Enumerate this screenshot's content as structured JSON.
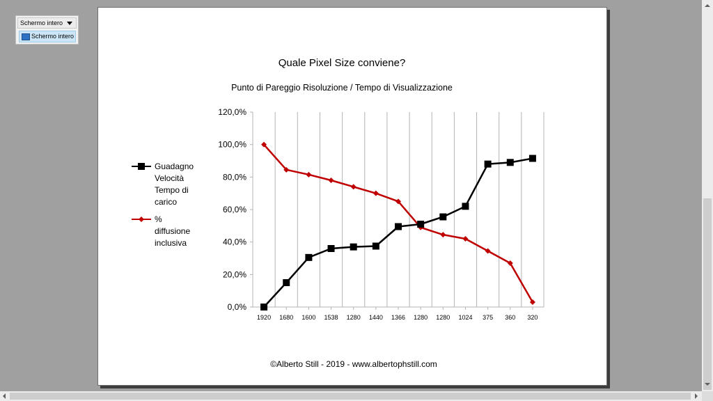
{
  "toolbar": {
    "view_select_value": "Schermo intero",
    "view_option_label": "Schermo intero"
  },
  "chart_data": {
    "type": "line",
    "title": "Quale Pixel Size conviene?",
    "subtitle": "Punto di Pareggio Risoluzione / Tempo di Visualizzazione",
    "footer": "©Alberto Still - 2019 - www.albertophstill.com",
    "categories": [
      "1920",
      "1680",
      "1600",
      "1538",
      "1280",
      "1440",
      "1366",
      "1280",
      "1280",
      "1024",
      "375",
      "360",
      "320"
    ],
    "y_ticks": [
      "0,0%",
      "20,0%",
      "40,0%",
      "60,0%",
      "80,0%",
      "100,0%",
      "120,0%"
    ],
    "ylim": [
      0,
      120
    ],
    "grid": "vertical",
    "legend_position": "left",
    "series": [
      {
        "name": "Guadagno Velocità Tempo di carico",
        "legend_lines": [
          "Guadagno",
          "Velocità",
          "Tempo di",
          "carico"
        ],
        "color": "#000000",
        "marker": "square",
        "values": [
          0,
          15,
          30.5,
          36,
          37,
          37.5,
          49.5,
          51,
          55.5,
          62,
          88,
          89,
          91.5
        ]
      },
      {
        "name": "% diffusione inclusiva",
        "legend_lines": [
          "%",
          "diffusione",
          "inclusiva"
        ],
        "color": "#c00000",
        "marker": "diamond",
        "values": [
          100,
          84.5,
          81.5,
          78,
          74,
          70,
          65,
          49,
          44.5,
          42,
          34.5,
          27,
          3
        ]
      }
    ]
  }
}
